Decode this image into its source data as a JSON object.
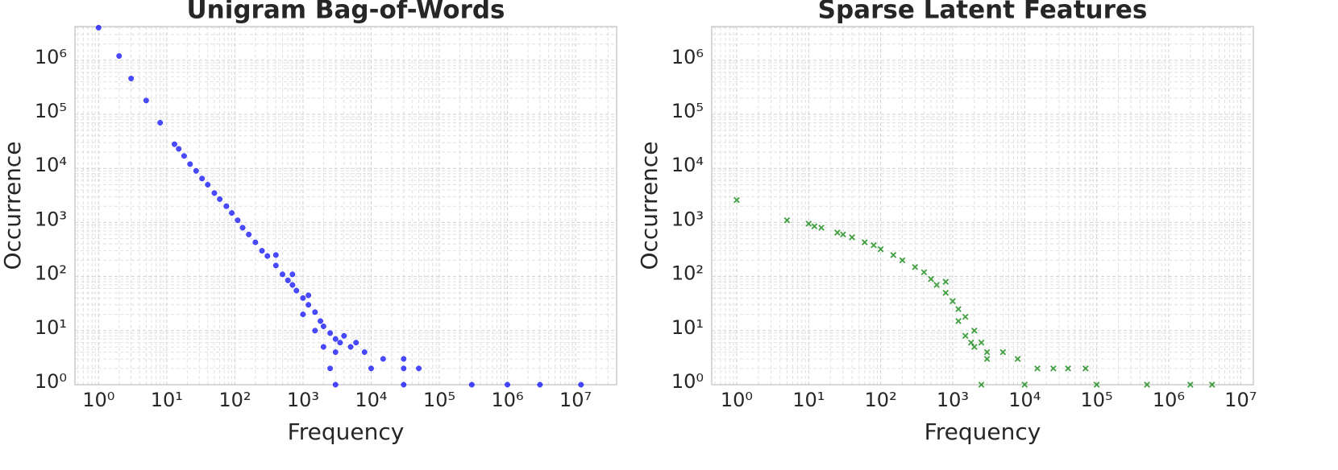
{
  "chart_data": [
    {
      "type": "scatter",
      "title": "Unigram Bag-of-Words",
      "xlabel": "Frequency",
      "ylabel": "Occurrence",
      "color": "#0000ff",
      "marker": "o",
      "xscale": "log",
      "yscale": "log",
      "grid": true,
      "xlim": [
        0.45,
        40000000
      ],
      "ylim": [
        1,
        4200000
      ],
      "xticks": [
        {
          "value": 1,
          "label": "10⁰"
        },
        {
          "value": 10,
          "label": "10¹"
        },
        {
          "value": 100,
          "label": "10²"
        },
        {
          "value": 1000,
          "label": "10³"
        },
        {
          "value": 10000,
          "label": "10⁴"
        },
        {
          "value": 100000,
          "label": "10⁵"
        },
        {
          "value": 1000000,
          "label": "10⁶"
        },
        {
          "value": 10000000,
          "label": "10⁷"
        }
      ],
      "yticks": [
        {
          "value": 1,
          "label": "10⁰"
        },
        {
          "value": 10,
          "label": "10¹"
        },
        {
          "value": 100,
          "label": "10²"
        },
        {
          "value": 1000,
          "label": "10³"
        },
        {
          "value": 10000,
          "label": "10⁴"
        },
        {
          "value": 100000,
          "label": "10⁵"
        },
        {
          "value": 1000000,
          "label": "10⁶"
        }
      ],
      "x": [
        1,
        2,
        3,
        5,
        8,
        13,
        15,
        18,
        22,
        27,
        33,
        40,
        50,
        60,
        75,
        90,
        110,
        130,
        160,
        200,
        250,
        300,
        400,
        500,
        600,
        700,
        800,
        1000,
        1200,
        1500,
        1800,
        2000,
        2500,
        3000,
        3500,
        1000,
        1500,
        2000,
        3000,
        5000,
        8000,
        15000,
        30000,
        2500,
        10000,
        30000,
        50000,
        3000,
        30000,
        300000,
        1000000,
        3000000,
        12000000,
        700,
        400,
        1200,
        4000,
        6000
      ],
      "values": [
        4000000,
        1200000,
        460000,
        180000,
        70000,
        28000,
        23000,
        17000,
        12000,
        9000,
        6500,
        5000,
        3500,
        2700,
        2000,
        1500,
        1100,
        800,
        600,
        430,
        300,
        240,
        160,
        110,
        85,
        70,
        55,
        40,
        30,
        22,
        15,
        12,
        9,
        7,
        6,
        20,
        10,
        5,
        4,
        5,
        4,
        3,
        3,
        2,
        2,
        2,
        2,
        1,
        1,
        1,
        1,
        1,
        1,
        110,
        250,
        45,
        8,
        6
      ]
    },
    {
      "type": "scatter",
      "title": "Sparse Latent Features",
      "xlabel": "Frequency",
      "ylabel": "Occurrence",
      "color": "#008000",
      "marker": "x",
      "xscale": "log",
      "yscale": "log",
      "grid": true,
      "xlim": [
        0.45,
        15000000
      ],
      "ylim": [
        1,
        4200000
      ],
      "xticks": [
        {
          "value": 1,
          "label": "10⁰"
        },
        {
          "value": 10,
          "label": "10¹"
        },
        {
          "value": 100,
          "label": "10²"
        },
        {
          "value": 1000,
          "label": "10³"
        },
        {
          "value": 10000,
          "label": "10⁴"
        },
        {
          "value": 100000,
          "label": "10⁵"
        },
        {
          "value": 1000000,
          "label": "10⁶"
        },
        {
          "value": 10000000,
          "label": "10⁷"
        }
      ],
      "yticks": [
        {
          "value": 1,
          "label": "10⁰"
        },
        {
          "value": 10,
          "label": "10¹"
        },
        {
          "value": 100,
          "label": "10²"
        },
        {
          "value": 1000,
          "label": "10³"
        },
        {
          "value": 10000,
          "label": "10⁴"
        },
        {
          "value": 100000,
          "label": "10⁵"
        },
        {
          "value": 1000000,
          "label": "10⁶"
        }
      ],
      "x": [
        1,
        5,
        10,
        12,
        15,
        25,
        30,
        40,
        60,
        80,
        100,
        150,
        200,
        300,
        400,
        500,
        600,
        800,
        1000,
        1200,
        1500,
        2000,
        2500,
        3000,
        1500,
        2000,
        3000,
        5000,
        8000,
        15000,
        25000,
        40000,
        70000,
        2500,
        10000,
        100000,
        500000,
        2000000,
        4000000,
        800,
        1200,
        1800
      ],
      "values": [
        2600,
        1100,
        950,
        850,
        800,
        650,
        600,
        530,
        430,
        380,
        320,
        250,
        200,
        150,
        120,
        90,
        70,
        50,
        35,
        25,
        18,
        10,
        6,
        4,
        8,
        5,
        3,
        4,
        3,
        2,
        2,
        2,
        2,
        1,
        1,
        1,
        1,
        1,
        1,
        80,
        15,
        6
      ]
    }
  ]
}
